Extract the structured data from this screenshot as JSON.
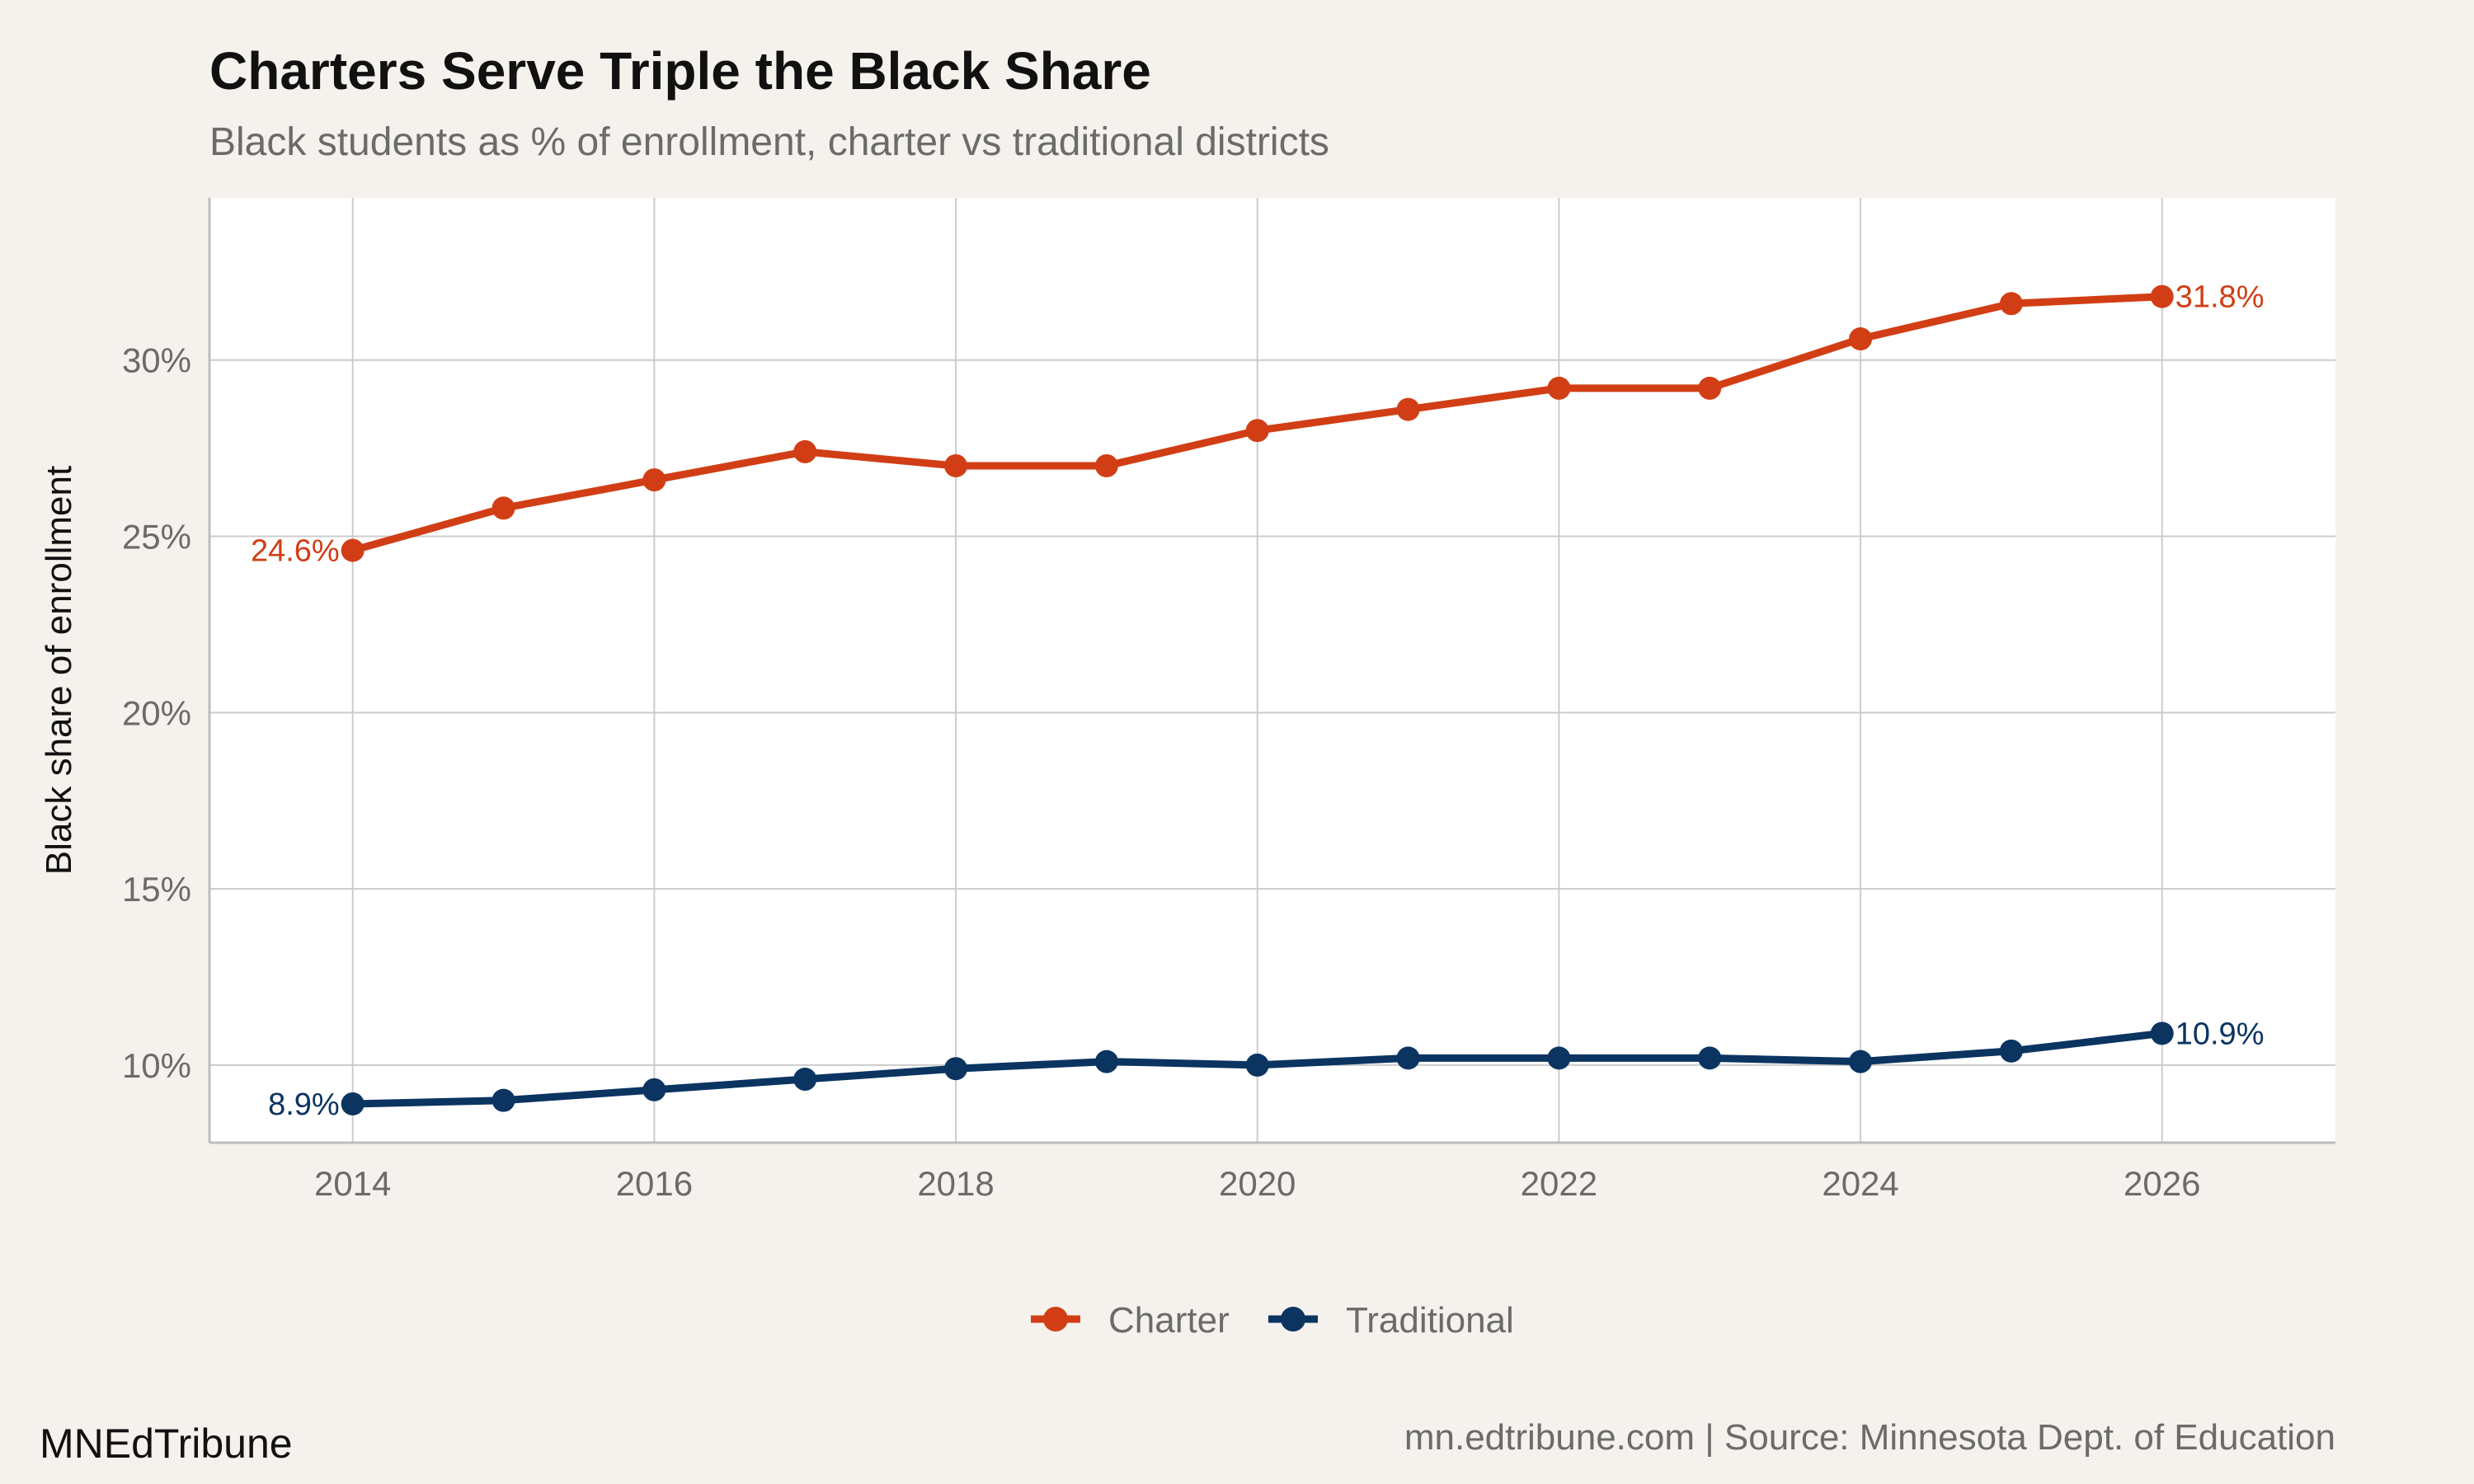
{
  "chart_data": {
    "type": "line",
    "title": "Charters Serve Triple the Black Share",
    "subtitle": "Black students as % of enrollment, charter vs traditional districts",
    "xlabel": "",
    "ylabel": "Black share of enrollment",
    "x": [
      2014,
      2015,
      2016,
      2017,
      2018,
      2019,
      2020,
      2021,
      2022,
      2023,
      2024,
      2025,
      2026
    ],
    "xlim": [
      2013.05,
      2027.15
    ],
    "ylim": [
      7.8,
      34.6
    ],
    "x_ticks": [
      2014,
      2016,
      2018,
      2020,
      2022,
      2024,
      2026
    ],
    "x_tick_labels": [
      "2014",
      "2016",
      "2018",
      "2020",
      "2022",
      "2024",
      "2026"
    ],
    "y_ticks": [
      10,
      15,
      20,
      25,
      30
    ],
    "y_tick_labels": [
      "10%",
      "15%",
      "20%",
      "25%",
      "30%"
    ],
    "grid": true,
    "legend_position": "bottom",
    "series": [
      {
        "name": "Charter",
        "color": "#d13e15",
        "values": [
          24.6,
          25.8,
          26.6,
          27.4,
          27.0,
          27.0,
          28.0,
          28.6,
          29.2,
          29.2,
          30.6,
          31.6,
          31.8
        ],
        "start_label": "24.6%",
        "end_label": "31.8%"
      },
      {
        "name": "Traditional",
        "color": "#0b3461",
        "values": [
          8.9,
          9.0,
          9.3,
          9.6,
          9.9,
          10.1,
          10.0,
          10.2,
          10.2,
          10.2,
          10.1,
          10.4,
          10.9
        ],
        "start_label": "8.9%",
        "end_label": "10.9%"
      }
    ]
  },
  "footer": {
    "brand": "MNEdTribune",
    "source": "mn.edtribune.com | Source: Minnesota Dept. of Education"
  }
}
